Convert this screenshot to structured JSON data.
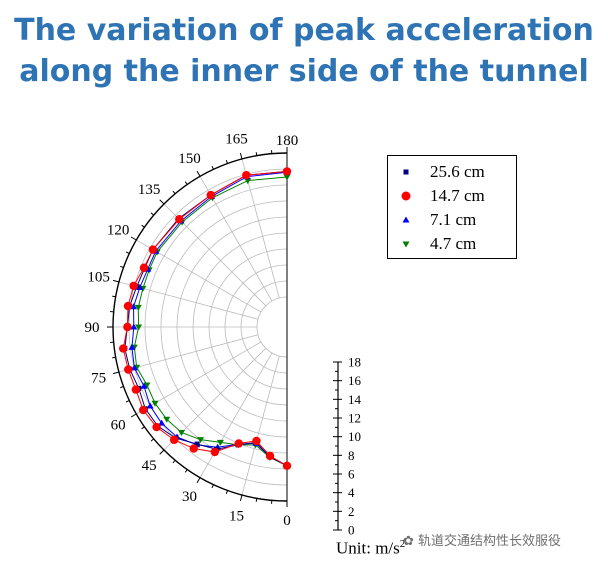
{
  "title": {
    "line1": "The variation of peak acceleration",
    "line2": "along the inner side of the tunnel"
  },
  "colors": {
    "title": "#2e74b5",
    "series": [
      "#000080",
      "#ff0000",
      "#0000ff",
      "#008000"
    ],
    "grid": "#bbbbbb"
  },
  "chart_data": {
    "type": "scatter",
    "projection": "polar-half-left",
    "angle_axis": {
      "ticks": [
        0,
        15,
        30,
        45,
        60,
        75,
        90,
        105,
        120,
        135,
        150,
        165,
        180
      ]
    },
    "radial_axis": {
      "ticks": [
        0,
        2,
        4,
        6,
        8,
        10,
        12,
        14,
        16,
        18
      ],
      "unit_label": "Unit: m/s",
      "unit_exponent": "2",
      "range": [
        0,
        18
      ]
    },
    "grid": true,
    "legend_position": "right",
    "theta": [
      0,
      7.5,
      15,
      22.5,
      30,
      37.5,
      45,
      52.5,
      60,
      67.5,
      75,
      82.5,
      90,
      97.5,
      105,
      112.5,
      120,
      135,
      150,
      165,
      180
    ],
    "series": [
      {
        "name": "25.6 cm",
        "marker": "square",
        "values": [
          13.6,
          12.6,
          11.2,
          12.2,
          13.9,
          14.7,
          15.9,
          16.6,
          16.7,
          16.3,
          16.6,
          16.7,
          16.2,
          16.1,
          15.7,
          15.5,
          15.6,
          15.4,
          15.3,
          15.9,
          15.7
        ]
      },
      {
        "name": "14.7 cm",
        "marker": "circle",
        "values": [
          13.6,
          12.5,
          11.0,
          12.0,
          14.3,
          15.4,
          16.2,
          16.8,
          17.0,
          16.7,
          16.8,
          16.9,
          16.2,
          16.3,
          16.1,
          15.6,
          15.6,
          15.3,
          15.3,
          15.9,
          15.7
        ]
      },
      {
        "name": "7.1 cm",
        "marker": "triangle-up",
        "values": [
          13.6,
          12.6,
          11.3,
          12.1,
          13.6,
          14.8,
          15.7,
          16.0,
          16.0,
          15.6,
          16.0,
          15.8,
          15.4,
          15.6,
          15.3,
          15.1,
          15.2,
          15.0,
          15.1,
          15.7,
          15.6
        ]
      },
      {
        "name": "4.7 cm",
        "marker": "triangle-down",
        "values": [
          13.6,
          12.7,
          11.5,
          12.2,
          12.9,
          14.0,
          14.9,
          15.2,
          15.3,
          15.2,
          15.7,
          15.5,
          14.8,
          15.0,
          14.9,
          14.9,
          15.0,
          14.8,
          14.9,
          15.2,
          15.0
        ]
      }
    ]
  },
  "watermark": "轨道交通结构性长效服役"
}
